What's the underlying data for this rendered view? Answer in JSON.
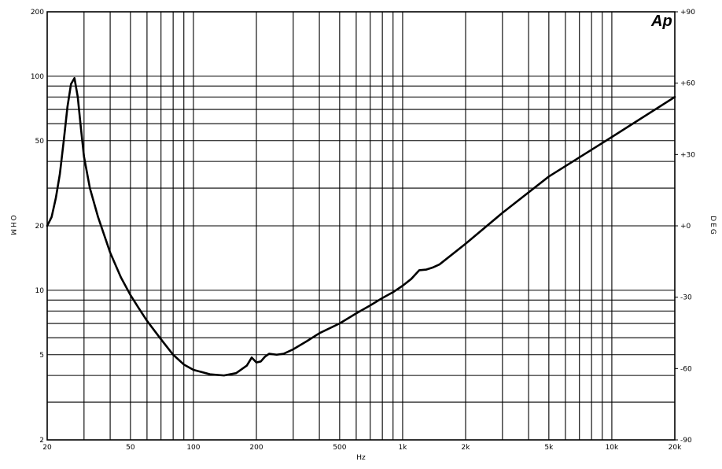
{
  "chart_data": {
    "type": "line",
    "title": "",
    "xlabel": "Hz",
    "ylabel_left": "OHM",
    "ylabel_right": "DEG",
    "x_scale": "log",
    "y_scale": "log",
    "xlim": [
      20,
      20000
    ],
    "ylim": [
      2,
      200
    ],
    "y2lim": [
      -90,
      90
    ],
    "grid": true,
    "x_ticks": [
      20,
      50,
      100,
      200,
      500,
      1000,
      2000,
      5000,
      10000,
      20000
    ],
    "x_tick_labels": [
      "20",
      "50",
      "100",
      "200",
      "500",
      "1k",
      "2k",
      "5k",
      "10k",
      "20k"
    ],
    "y_ticks": [
      2,
      5,
      10,
      20,
      50,
      100,
      200
    ],
    "y_tick_labels": [
      "2",
      "5",
      "10",
      "20",
      "50",
      "100",
      "200"
    ],
    "y2_ticks": [
      -90,
      -60,
      -30,
      0,
      30,
      60,
      90
    ],
    "y2_tick_labels": [
      "-90",
      "-60",
      "-30",
      "+0",
      "+30",
      "+60",
      "+90"
    ],
    "logo": "Ap",
    "line_color": "#000000",
    "series": [
      {
        "x": [
          20,
          21,
          22,
          23,
          24,
          25,
          26,
          27,
          28,
          29,
          30,
          32,
          35,
          40,
          45,
          50,
          55,
          60,
          70,
          80,
          90,
          100,
          120,
          140,
          160,
          180,
          190,
          200,
          210,
          220,
          230,
          250,
          270,
          300,
          350,
          400,
          500,
          600,
          700,
          800,
          900,
          1000,
          1100,
          1200,
          1300,
          1400,
          1500,
          2000,
          3000,
          5000,
          10000,
          20000
        ],
        "y": [
          20,
          22,
          27,
          35,
          50,
          72,
          92,
          98,
          80,
          57,
          42,
          30,
          22,
          15,
          11.5,
          9.5,
          8.2,
          7.2,
          5.9,
          5.0,
          4.5,
          4.25,
          4.05,
          4.0,
          4.1,
          4.45,
          4.85,
          4.6,
          4.65,
          4.9,
          5.05,
          5.0,
          5.05,
          5.3,
          5.8,
          6.3,
          7.0,
          7.8,
          8.5,
          9.2,
          9.8,
          10.5,
          11.3,
          12.4,
          12.5,
          12.8,
          13.2,
          16.5,
          23,
          34,
          52,
          80
        ]
      }
    ]
  }
}
